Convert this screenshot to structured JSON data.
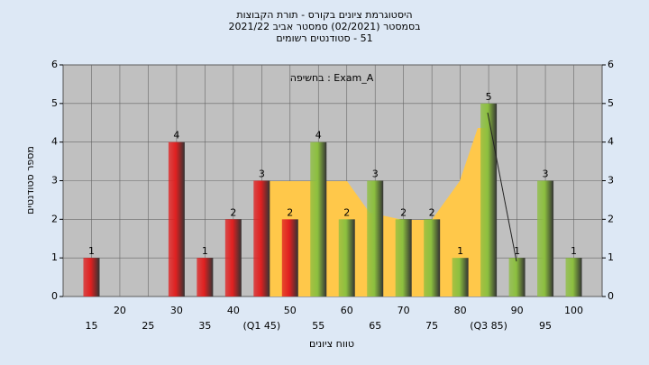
{
  "chart_data": {
    "type": "bar",
    "title": "היסטוגרמת ציונים בקורס - תורת הקבוצות",
    "subtitle": "בסמסטר  (02/2021)  סמסטר אביב 2021/22",
    "subtitle2": "51 - סטודנטים רשומים",
    "annotation": "בחשיפה : Exam_A",
    "x_label": "טווח ציונים",
    "y_label": "מספר סטודנטים",
    "categories": [
      "15",
      "20",
      "25",
      "30",
      "35",
      "40",
      "(Q1 45)",
      "50",
      "55",
      "60",
      "65",
      "70",
      "75",
      "80",
      "(Q3 85)",
      "90",
      "95",
      "100"
    ],
    "values": [
      1,
      0,
      0,
      4,
      1,
      2,
      3,
      2,
      4,
      2,
      3,
      2,
      2,
      1,
      5,
      1,
      3,
      1
    ],
    "colors": [
      "#e02020",
      "#e02020",
      "#e02020",
      "#e02020",
      "#e02020",
      "#e02020",
      "#e02020",
      "#e02020",
      "#8cbf3f",
      "#8cbf3f",
      "#8cbf3f",
      "#8cbf3f",
      "#8cbf3f",
      "#8cbf3f",
      "#8cbf3f",
      "#8cbf3f",
      "#8cbf3f",
      "#8cbf3f"
    ],
    "ylim": [
      0,
      6
    ],
    "yticks": [
      0,
      1,
      2,
      3,
      4,
      5,
      6
    ],
    "y2lim": [
      0,
      6
    ],
    "y2ticks": [
      0,
      1,
      2,
      3,
      4,
      5,
      6
    ],
    "grid": true
  }
}
